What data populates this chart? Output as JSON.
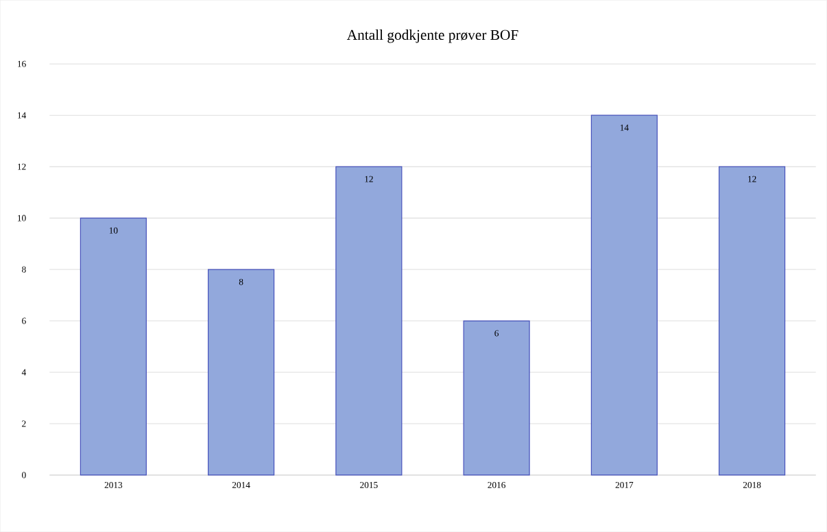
{
  "chart_data": {
    "type": "bar",
    "title": "Antall godkjente prøver BOF",
    "categories": [
      "2013",
      "2014",
      "2015",
      "2016",
      "2017",
      "2018"
    ],
    "values": [
      10,
      8,
      12,
      6,
      14,
      12
    ],
    "color": "#92a8dc",
    "ylim": [
      0,
      16
    ],
    "yticks": [
      0,
      2,
      4,
      6,
      8,
      10,
      12,
      14,
      16
    ],
    "grid": "y",
    "data_labels": true
  }
}
